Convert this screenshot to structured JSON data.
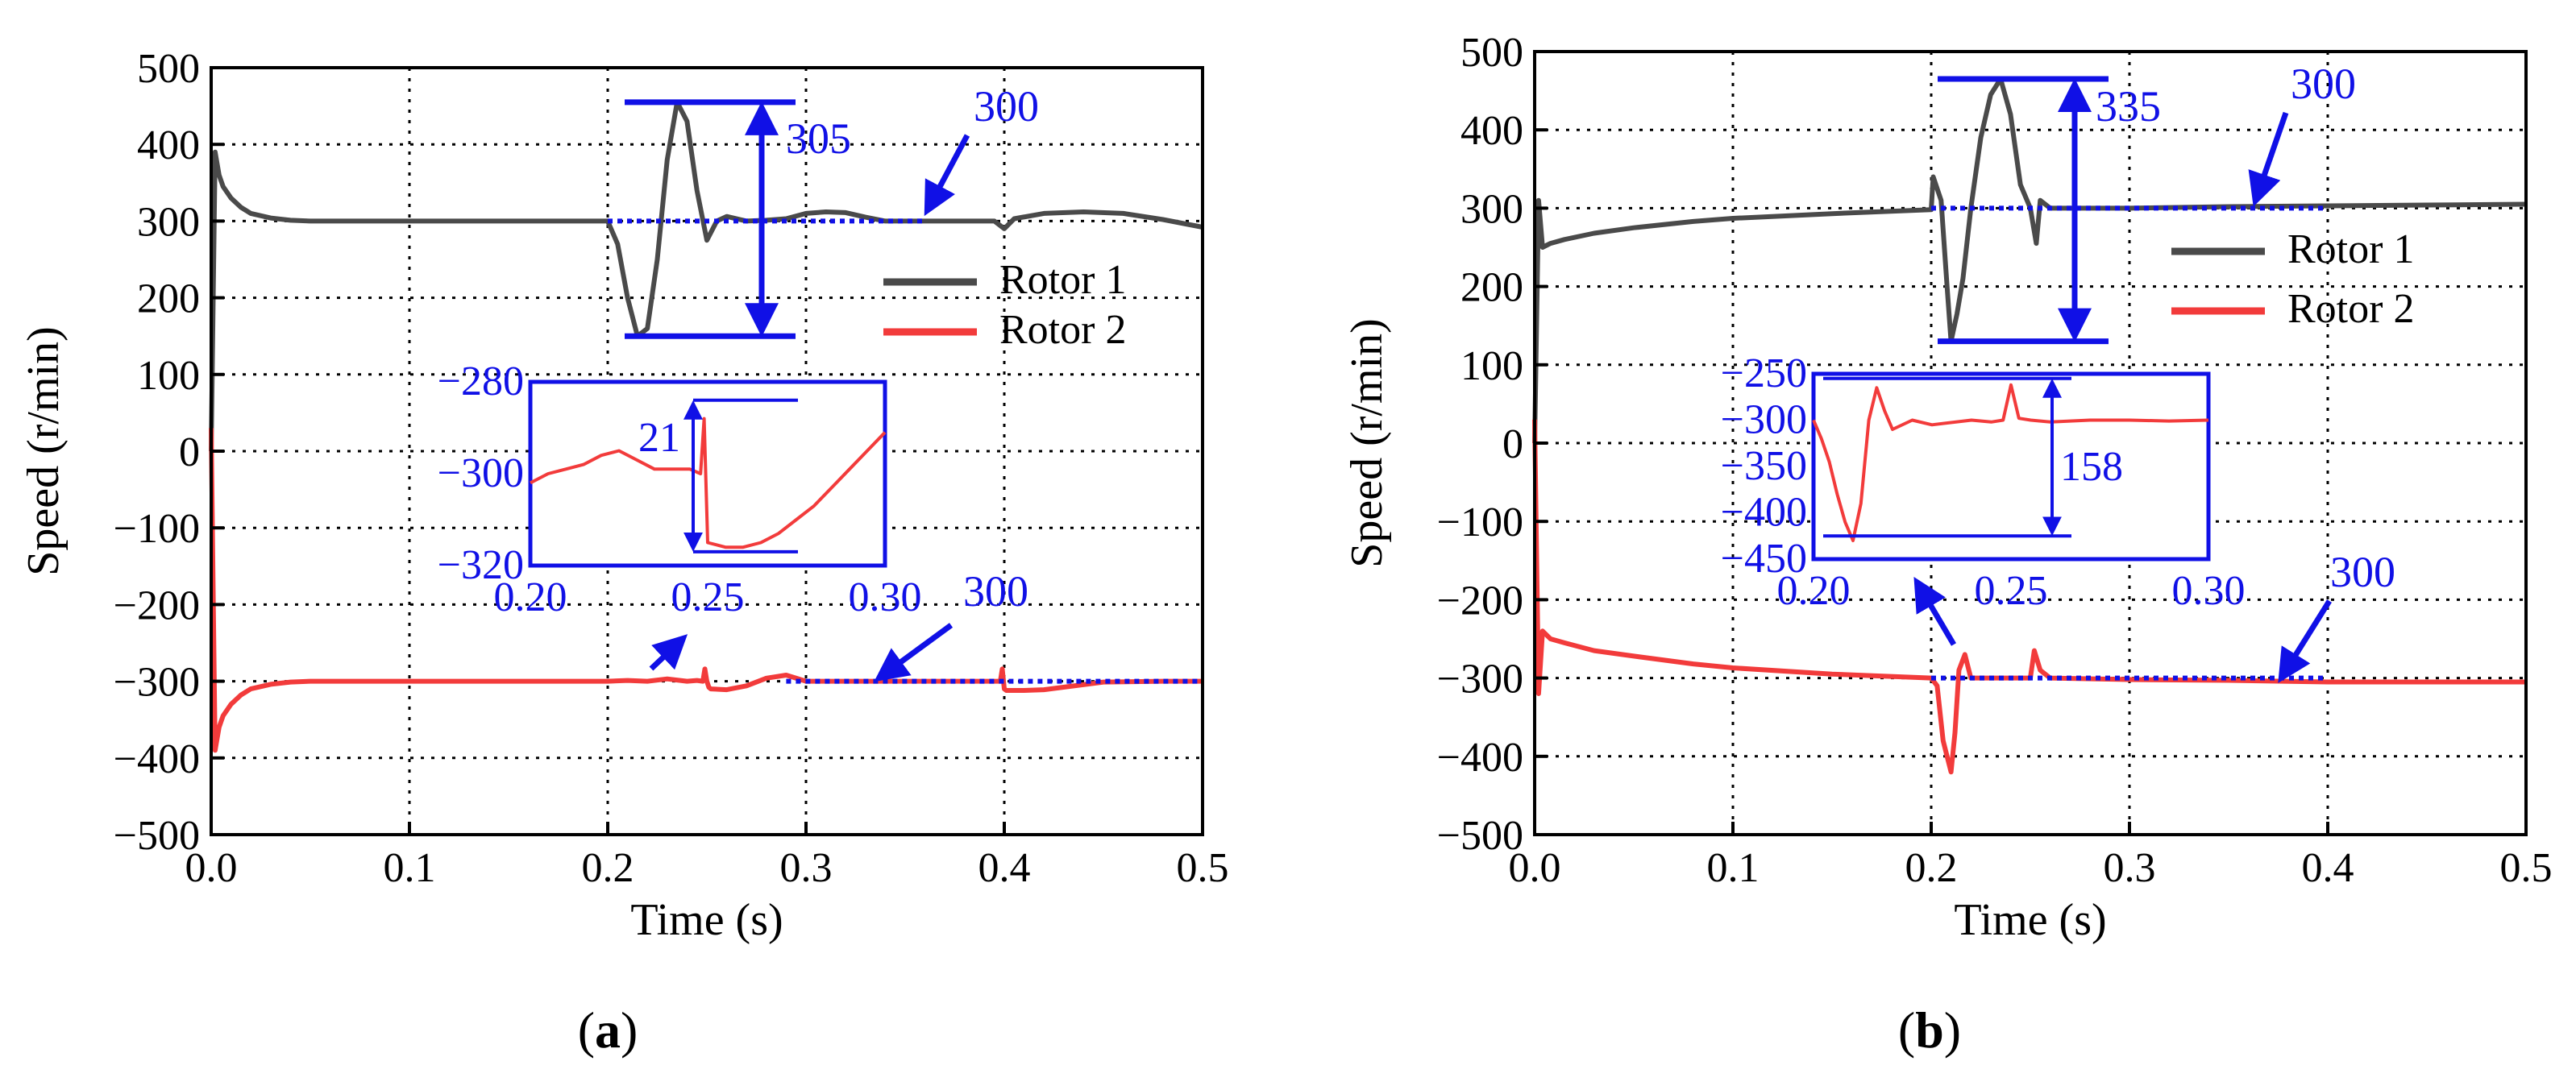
{
  "colors": {
    "rotor1": "#4a4a4a",
    "rotor2": "#f23b3b",
    "annotation": "#1010e6",
    "axis": "#000000",
    "grid": "#000000"
  },
  "chart_data": [
    {
      "type": "line",
      "panel_label": "a",
      "xlabel": "Time (s)",
      "ylabel": "Speed (r/min)",
      "xlim": [
        0,
        0.5
      ],
      "ylim": [
        -500,
        500
      ],
      "xticks": [
        "0.0",
        "0.1",
        "0.2",
        "0.3",
        "0.4",
        "0.5"
      ],
      "yticks": [
        "500",
        "400",
        "300",
        "200",
        "100",
        "0",
        "−100",
        "−200",
        "−300",
        "−400",
        "−500"
      ],
      "grid": true,
      "legend": {
        "position": "center-right",
        "entries": [
          "Rotor 1",
          "Rotor 2"
        ]
      },
      "series": [
        {
          "name": "Rotor 1",
          "x": [
            0,
            0.002,
            0.004,
            0.006,
            0.01,
            0.015,
            0.02,
            0.03,
            0.04,
            0.05,
            0.1,
            0.2,
            0.205,
            0.21,
            0.215,
            0.22,
            0.225,
            0.23,
            0.235,
            0.24,
            0.245,
            0.25,
            0.255,
            0.26,
            0.27,
            0.28,
            0.29,
            0.3,
            0.31,
            0.32,
            0.33,
            0.34,
            0.35,
            0.36,
            0.38,
            0.395,
            0.4,
            0.405,
            0.42,
            0.44,
            0.46,
            0.48,
            0.5
          ],
          "y": [
            0,
            390,
            360,
            345,
            330,
            318,
            310,
            304,
            301,
            300,
            300,
            300,
            270,
            200,
            150,
            160,
            250,
            380,
            455,
            430,
            340,
            275,
            300,
            306,
            300,
            301,
            303,
            310,
            312,
            311,
            305,
            300,
            300,
            300,
            300,
            300,
            290,
            303,
            310,
            312,
            310,
            302,
            292
          ]
        },
        {
          "name": "Rotor 2",
          "x": [
            0,
            0.002,
            0.004,
            0.006,
            0.01,
            0.015,
            0.02,
            0.03,
            0.04,
            0.05,
            0.1,
            0.2,
            0.21,
            0.22,
            0.23,
            0.24,
            0.245,
            0.248,
            0.249,
            0.25,
            0.251,
            0.252,
            0.26,
            0.27,
            0.28,
            0.29,
            0.295,
            0.3,
            0.32,
            0.35,
            0.38,
            0.398,
            0.399,
            0.4,
            0.401,
            0.41,
            0.42,
            0.45,
            0.48,
            0.5
          ],
          "y": [
            30,
            -390,
            -360,
            -345,
            -330,
            -318,
            -310,
            -304,
            -301,
            -300,
            -300,
            -300,
            -299,
            -300,
            -297,
            -300,
            -299,
            -300,
            -284,
            -300,
            -308,
            -310,
            -311,
            -306,
            -296,
            -292,
            -296,
            -300,
            -300,
            -300,
            -300,
            -300,
            -284,
            -310,
            -312,
            -312,
            -311,
            -301,
            -300,
            -300
          ]
        }
      ],
      "inset": {
        "xlim": [
          0.2,
          0.3
        ],
        "ylim": [
          -320,
          -280
        ],
        "xticks": [
          "0.20",
          "0.25",
          "0.30"
        ],
        "yticks": [
          "−280",
          "−300",
          "−320"
        ],
        "series": {
          "name": "Rotor 2",
          "x": [
            0.2,
            0.205,
            0.21,
            0.215,
            0.22,
            0.225,
            0.23,
            0.235,
            0.24,
            0.245,
            0.248,
            0.249,
            0.25,
            0.255,
            0.26,
            0.265,
            0.27,
            0.275,
            0.28,
            0.285,
            0.29,
            0.295,
            0.3
          ],
          "y": [
            -302,
            -300,
            -299,
            -298,
            -296,
            -295,
            -297,
            -299,
            -299,
            -299,
            -300,
            -288,
            -315,
            -316,
            -316,
            -315,
            -313,
            -310,
            -307,
            -303,
            -299,
            -295,
            -291
          ]
        },
        "annotation": {
          "label": "21",
          "value": 21
        }
      },
      "annotations": [
        {
          "label": "305",
          "value": 305
        },
        {
          "label": "300",
          "value": 300
        },
        {
          "label": "300",
          "value": 300
        }
      ]
    },
    {
      "type": "line",
      "panel_label": "b",
      "xlabel": "Time (s)",
      "ylabel": "Speed (r/min)",
      "xlim": [
        0,
        0.5
      ],
      "ylim": [
        -500,
        500
      ],
      "xticks": [
        "0.0",
        "0.1",
        "0.2",
        "0.3",
        "0.4",
        "0.5"
      ],
      "yticks": [
        "500",
        "400",
        "300",
        "200",
        "100",
        "0",
        "−100",
        "−200",
        "−300",
        "−400",
        "−500"
      ],
      "grid": true,
      "legend": {
        "position": "center-right",
        "entries": [
          "Rotor 1",
          "Rotor 2"
        ]
      },
      "series": [
        {
          "name": "Rotor 1",
          "x": [
            0,
            0.002,
            0.004,
            0.008,
            0.015,
            0.03,
            0.05,
            0.08,
            0.1,
            0.15,
            0.2,
            0.201,
            0.205,
            0.208,
            0.21,
            0.213,
            0.216,
            0.22,
            0.225,
            0.23,
            0.235,
            0.24,
            0.245,
            0.25,
            0.253,
            0.255,
            0.26,
            0.27,
            0.3,
            0.35,
            0.4,
            0.45,
            0.5
          ],
          "y": [
            0,
            310,
            250,
            255,
            260,
            268,
            275,
            283,
            287,
            293,
            298,
            340,
            310,
            200,
            130,
            165,
            210,
            300,
            390,
            445,
            465,
            420,
            330,
            300,
            255,
            310,
            300,
            300,
            300,
            302,
            303,
            304,
            305
          ]
        },
        {
          "name": "Rotor 2",
          "x": [
            0,
            0.002,
            0.004,
            0.008,
            0.015,
            0.03,
            0.05,
            0.08,
            0.1,
            0.15,
            0.2,
            0.203,
            0.206,
            0.21,
            0.212,
            0.214,
            0.217,
            0.22,
            0.23,
            0.24,
            0.25,
            0.252,
            0.255,
            0.26,
            0.3,
            0.35,
            0.4,
            0.45,
            0.5
          ],
          "y": [
            30,
            -320,
            -240,
            -250,
            -255,
            -265,
            -272,
            -282,
            -287,
            -295,
            -300,
            -310,
            -380,
            -420,
            -370,
            -290,
            -270,
            -300,
            -300,
            -300,
            -300,
            -265,
            -290,
            -300,
            -302,
            -303,
            -305,
            -305,
            -305
          ]
        }
      ],
      "inset": {
        "xlim": [
          0.2,
          0.3
        ],
        "ylim": [
          -450,
          -250
        ],
        "xticks": [
          "0.20",
          "0.25",
          "0.30"
        ],
        "yticks": [
          "−250",
          "−300",
          "−350",
          "−400",
          "−450"
        ],
        "series": {
          "name": "Rotor 2",
          "x": [
            0.2,
            0.202,
            0.204,
            0.206,
            0.208,
            0.21,
            0.212,
            0.214,
            0.216,
            0.218,
            0.22,
            0.225,
            0.23,
            0.24,
            0.245,
            0.248,
            0.25,
            0.252,
            0.255,
            0.26,
            0.27,
            0.28,
            0.29,
            0.3
          ],
          "y": [
            -300,
            -320,
            -345,
            -380,
            -410,
            -430,
            -390,
            -300,
            -265,
            -290,
            -310,
            -300,
            -305,
            -300,
            -302,
            -300,
            -262,
            -298,
            -300,
            -302,
            -300,
            -300,
            -301,
            -300
          ]
        },
        "annotation": {
          "label": "158",
          "value": 158
        }
      },
      "annotations": [
        {
          "label": "335",
          "value": 335
        },
        {
          "label": "300",
          "value": 300
        },
        {
          "label": "300",
          "value": 300
        }
      ]
    }
  ]
}
